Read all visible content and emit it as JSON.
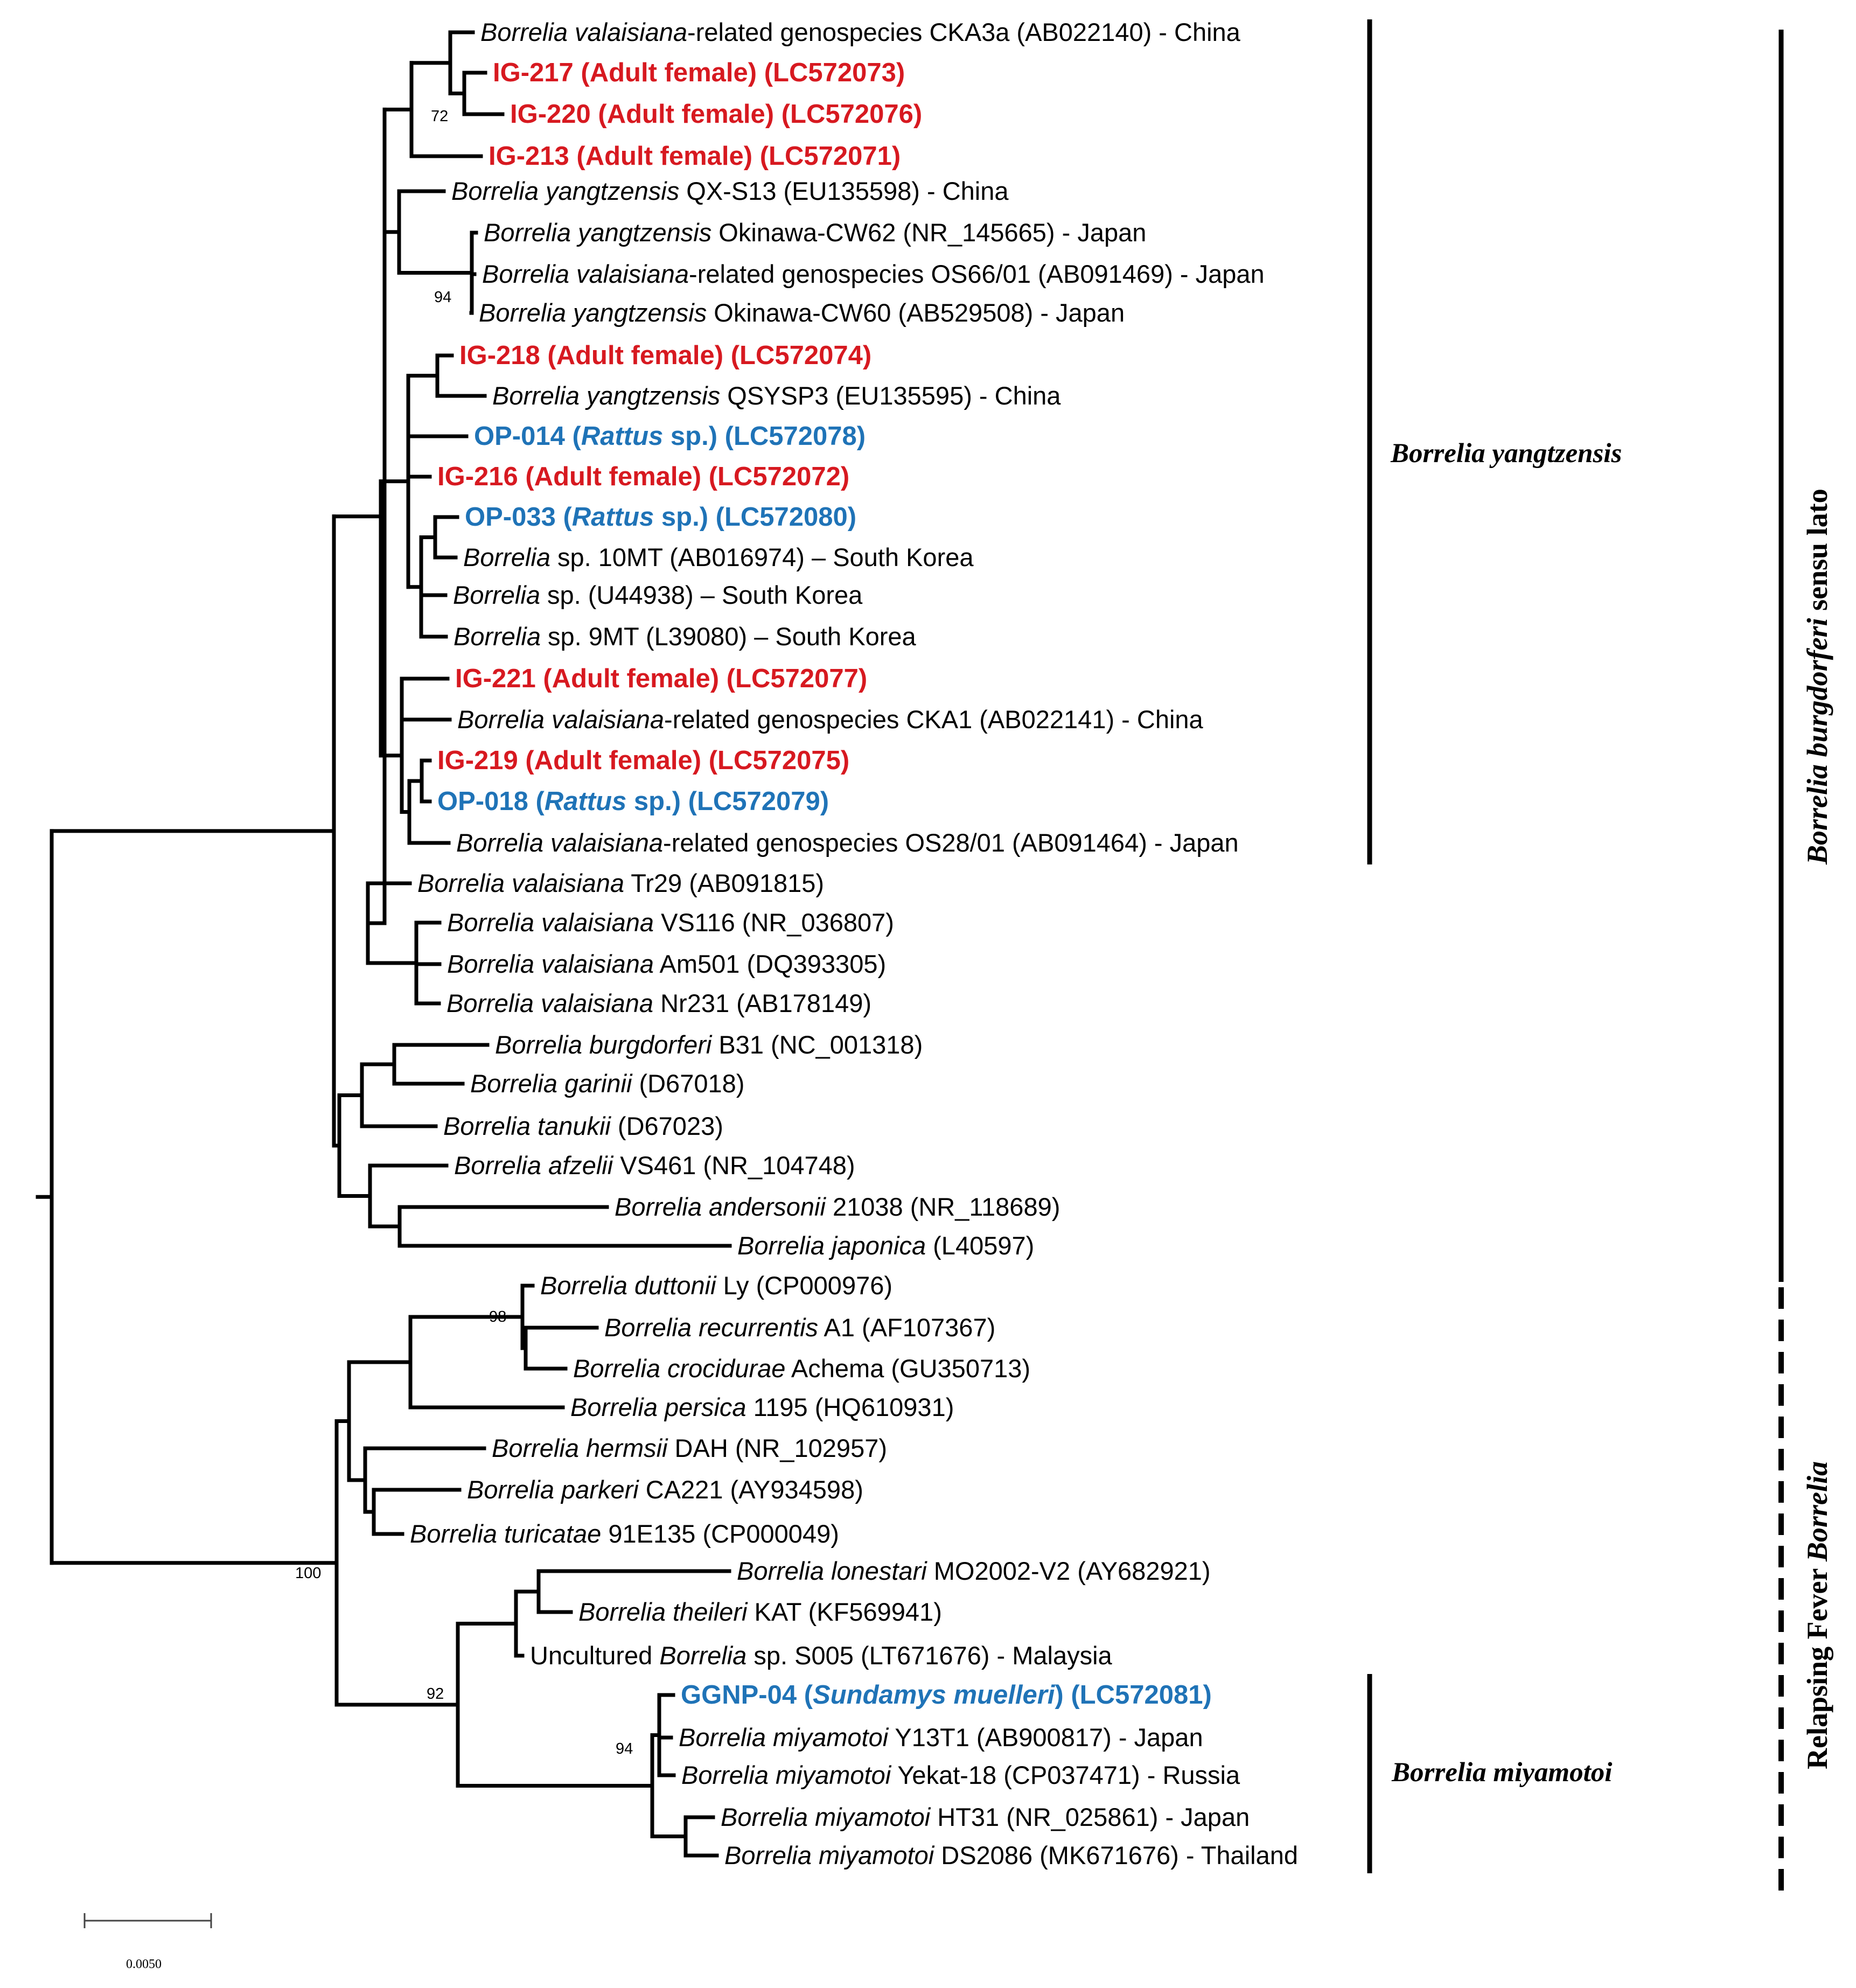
{
  "leaves": [
    {
      "sp": "Borrelia valaisiana",
      "rest": "-related genospecies CKA3a (AB022140) - China",
      "style": "normal"
    },
    {
      "sp": "",
      "rest": "IG-217 (Adult female) (LC572073)",
      "style": "red"
    },
    {
      "sp": "",
      "rest": "IG-220 (Adult female) (LC572076)",
      "style": "red"
    },
    {
      "sp": "",
      "rest": "IG-213 (Adult female) (LC572071)",
      "style": "red"
    },
    {
      "sp": "Borrelia yangtzensis",
      "rest": " QX-S13 (EU135598) - China",
      "style": "normal"
    },
    {
      "sp": "Borrelia yangtzensis",
      "rest": " Okinawa-CW62 (NR_145665) - Japan",
      "style": "normal"
    },
    {
      "sp": "Borrelia valaisiana",
      "rest": "-related genospecies OS66/01 (AB091469) - Japan",
      "style": "normal"
    },
    {
      "sp": "Borrelia yangtzensis",
      "rest": " Okinawa-CW60 (AB529508) - Japan",
      "style": "normal"
    },
    {
      "sp": "",
      "rest": "IG-218 (Adult female) (LC572074)",
      "style": "red"
    },
    {
      "sp": "Borrelia yangtzensis",
      "rest": " QSYSP3 (EU135595) - China",
      "style": "normal"
    },
    {
      "pre": "OP-014 (",
      "sp": "Rattus",
      "rest": " sp.) (LC572078)",
      "style": "blue"
    },
    {
      "sp": "",
      "rest": "IG-216 (Adult female) (LC572072)",
      "style": "red"
    },
    {
      "pre": "OP-033 (",
      "sp": "Rattus",
      "rest": " sp.) (LC572080)",
      "style": "blue"
    },
    {
      "sp": "Borrelia",
      "rest": " sp. 10MT (AB016974) – South Korea",
      "style": "normal"
    },
    {
      "sp": "Borrelia",
      "rest": " sp. (U44938) – South Korea",
      "style": "normal"
    },
    {
      "sp": "Borrelia",
      "rest": " sp. 9MT (L39080) – South Korea",
      "style": "normal"
    },
    {
      "sp": "",
      "rest": "IG-221 (Adult female) (LC572077)",
      "style": "red"
    },
    {
      "sp": "Borrelia valaisiana",
      "rest": "-related genospecies CKA1 (AB022141) - China",
      "style": "normal"
    },
    {
      "sp": "",
      "rest": "IG-219 (Adult female) (LC572075)",
      "style": "red"
    },
    {
      "pre": "OP-018 (",
      "sp": "Rattus",
      "rest": " sp.) (LC572079)",
      "style": "blue"
    },
    {
      "sp": "Borrelia valaisiana",
      "rest": "-related genospecies OS28/01 (AB091464) - Japan",
      "style": "normal"
    },
    {
      "sp": "Borrelia valaisiana",
      "rest": " Tr29 (AB091815)",
      "style": "normal"
    },
    {
      "sp": "Borrelia valaisiana",
      "rest": " VS116 (NR_036807)",
      "style": "normal"
    },
    {
      "sp": "Borrelia valaisiana",
      "rest": " Am501 (DQ393305)",
      "style": "normal"
    },
    {
      "sp": "Borrelia valaisiana",
      "rest": " Nr231 (AB178149)",
      "style": "normal"
    },
    {
      "sp": "Borrelia burgdorferi",
      "rest": " B31 (NC_001318)",
      "style": "normal"
    },
    {
      "sp": "Borrelia garinii",
      "rest": " (D67018)",
      "style": "normal"
    },
    {
      "sp": "Borrelia tanukii",
      "rest": " (D67023)",
      "style": "normal"
    },
    {
      "sp": "Borrelia afzelii",
      "rest": " VS461 (NR_104748)",
      "style": "normal"
    },
    {
      "sp": "Borrelia andersonii",
      "rest": " 21038 (NR_118689)",
      "style": "normal"
    },
    {
      "sp": "Borrelia japonica",
      "rest": " (L40597)",
      "style": "normal"
    },
    {
      "sp": "Borrelia duttonii",
      "rest": " Ly (CP000976)",
      "style": "normal"
    },
    {
      "sp": "Borrelia recurrentis",
      "rest": " A1 (AF107367)",
      "style": "normal"
    },
    {
      "sp": "Borrelia crocidurae",
      "rest": " Achema (GU350713)",
      "style": "normal"
    },
    {
      "sp": "Borrelia persica",
      "rest": " 1195 (HQ610931)",
      "style": "normal"
    },
    {
      "sp": "Borrelia hermsii",
      "rest": " DAH (NR_102957)",
      "style": "normal"
    },
    {
      "sp": "Borrelia parkeri",
      "rest": " CA221 (AY934598)",
      "style": "normal"
    },
    {
      "sp": "Borrelia turicatae",
      "rest": " 91E135 (CP000049)",
      "style": "normal"
    },
    {
      "sp": "Borrelia lonestari",
      "rest": " MO2002-V2 (AY682921)",
      "style": "normal"
    },
    {
      "sp": "Borrelia theileri",
      "rest": " KAT (KF569941)",
      "style": "normal"
    },
    {
      "pre": "Uncultured ",
      "sp": "Borrelia",
      "rest": " sp. S005 (LT671676) - Malaysia",
      "style": "normal"
    },
    {
      "pre": "GGNP-04 (",
      "sp": "Sundamys muelleri",
      "rest": ") (LC572081)",
      "style": "blue"
    },
    {
      "sp": "Borrelia miyamotoi",
      "rest": " Y13T1 (AB900817) - Japan",
      "style": "normal"
    },
    {
      "sp": "Borrelia miyamotoi",
      "rest": " Yekat-18 (CP037471) - Russia",
      "style": "normal"
    },
    {
      "sp": "Borrelia miyamotoi",
      "rest": " HT31 (NR_025861) - Japan",
      "style": "normal"
    },
    {
      "sp": "Borrelia miyamotoi",
      "rest": " DS2086 (MK671676) - Thailand",
      "style": "normal"
    }
  ],
  "bootstrap": [
    "72",
    "94",
    "98",
    "100",
    "92",
    "94"
  ],
  "clades": {
    "yangtzensis": "Borrelia yangtzensis",
    "miyamotoi": "Borrelia miyamotoi"
  },
  "groups": {
    "lyme_italic": "Borrelia burgdorferi",
    "lyme_rest": " sensu lato",
    "rf_prefix": "Relapsing Fever ",
    "rf_italic": "Borrelia"
  },
  "scale": {
    "label": "0.0050"
  },
  "colors": {
    "isolate_tick": "#d71920",
    "isolate_rodent": "#1f73b7"
  }
}
